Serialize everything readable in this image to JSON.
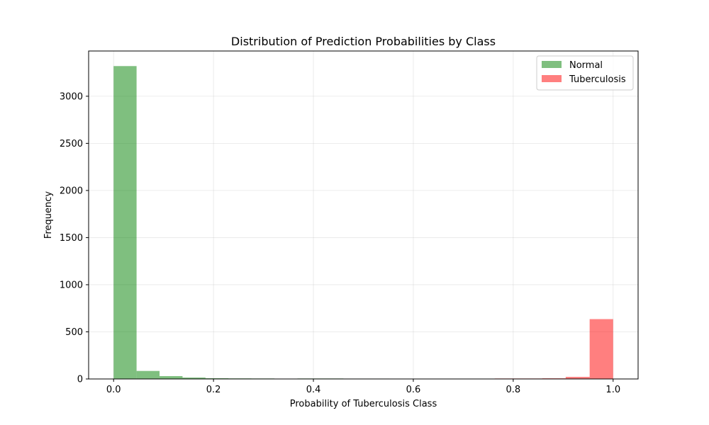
{
  "chart_data": {
    "type": "bar",
    "title": "Distribution of Prediction Probabilities by Class",
    "xlabel": "Probability of Tuberculosis Class",
    "ylabel": "Frequency",
    "xlim": [
      -0.05,
      1.05
    ],
    "ylim": [
      0,
      3480
    ],
    "xticks": [
      0.0,
      0.2,
      0.4,
      0.6,
      0.8,
      1.0
    ],
    "xtick_labels": [
      "0.0",
      "0.2",
      "0.4",
      "0.6",
      "0.8",
      "1.0"
    ],
    "yticks": [
      0,
      500,
      1000,
      1500,
      2000,
      2500,
      3000
    ],
    "ytick_labels": [
      "0",
      "500",
      "1000",
      "1500",
      "2000",
      "2500",
      "3000"
    ],
    "grid": true,
    "legend_position": "top-right",
    "series": [
      {
        "name": "Normal",
        "color": "#008000",
        "opacity": 0.5,
        "bins": [
          {
            "x0": 0.0,
            "x1": 0.046,
            "value": 3320
          },
          {
            "x0": 0.046,
            "x1": 0.092,
            "value": 85
          },
          {
            "x0": 0.092,
            "x1": 0.138,
            "value": 30
          },
          {
            "x0": 0.138,
            "x1": 0.184,
            "value": 15
          },
          {
            "x0": 0.184,
            "x1": 0.23,
            "value": 8
          },
          {
            "x0": 0.23,
            "x1": 0.276,
            "value": 6
          },
          {
            "x0": 0.276,
            "x1": 0.322,
            "value": 5
          },
          {
            "x0": 0.368,
            "x1": 0.414,
            "value": 5
          },
          {
            "x0": 0.414,
            "x1": 0.46,
            "value": 5
          },
          {
            "x0": 0.46,
            "x1": 0.506,
            "value": 4
          },
          {
            "x0": 0.506,
            "x1": 0.552,
            "value": 4
          }
        ]
      },
      {
        "name": "Tuberculosis",
        "color": "#ff0000",
        "opacity": 0.5,
        "bins": [
          {
            "x0": 0.763,
            "x1": 0.81,
            "value": 5
          },
          {
            "x0": 0.81,
            "x1": 0.858,
            "value": 5
          },
          {
            "x0": 0.858,
            "x1": 0.905,
            "value": 7
          },
          {
            "x0": 0.905,
            "x1": 0.953,
            "value": 22
          },
          {
            "x0": 0.953,
            "x1": 1.0,
            "value": 635
          }
        ]
      }
    ]
  }
}
